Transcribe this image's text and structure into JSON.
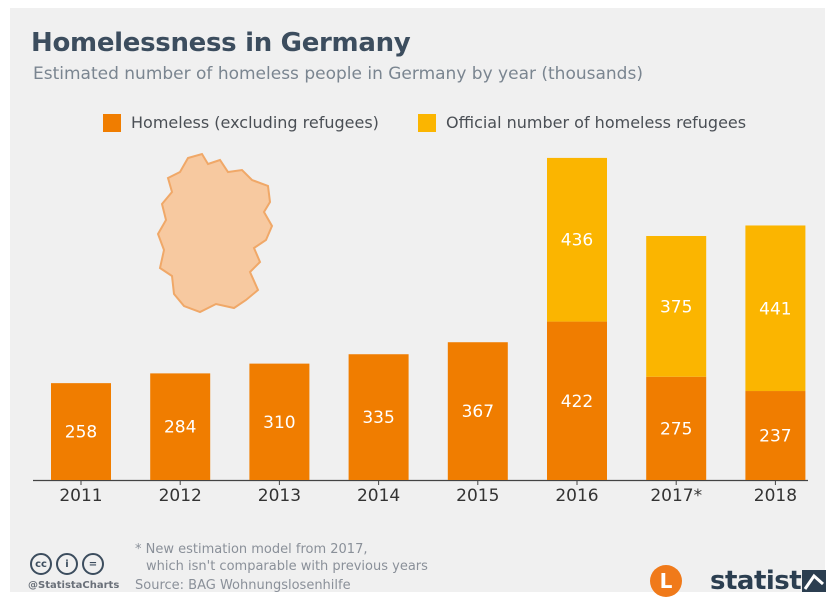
{
  "header": {
    "title": "Homelessness in Germany",
    "subtitle": "Estimated number of homeless people in Germany by year (thousands)"
  },
  "chart_data": {
    "type": "bar",
    "stacked": true,
    "title": "Homelessness in Germany",
    "subtitle": "Estimated number of homeless people in Germany by year (thousands)",
    "categories": [
      "2011",
      "2012",
      "2013",
      "2014",
      "2015",
      "2016",
      "2017*",
      "2018"
    ],
    "series": [
      {
        "name": "Homeless (excluding refugees)",
        "color": "#f07d00",
        "values": [
          258,
          284,
          310,
          335,
          367,
          422,
          275,
          237
        ]
      },
      {
        "name": "Official number of homeless refugees",
        "color": "#fbb500",
        "values": [
          null,
          null,
          null,
          null,
          null,
          436,
          375,
          441
        ]
      }
    ],
    "ylim": [
      0,
      900
    ],
    "grid": false,
    "legend_position": "top"
  },
  "footer": {
    "note_line1": "* New estimation model from 2017,",
    "note_line2": "which isn't comparable with previous years",
    "source": "Source: BAG Wohnungslosenhilfe",
    "handle": "@StatistaCharts",
    "brand": "statista",
    "logo_letter": "L"
  },
  "colors": {
    "text_dark": "#3c4d5e",
    "background": "#f0f0f0",
    "map_fill": "#f7c9a0",
    "map_stroke": "#f0a868"
  }
}
